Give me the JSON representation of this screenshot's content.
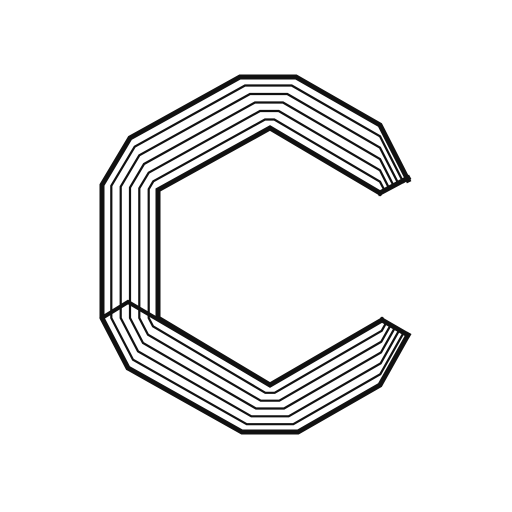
{
  "colors": {
    "background": "#ffffff",
    "stroke": "#111111"
  },
  "logo": {
    "icon": "stylized-c-logo-icon",
    "stripe_count": 6
  }
}
